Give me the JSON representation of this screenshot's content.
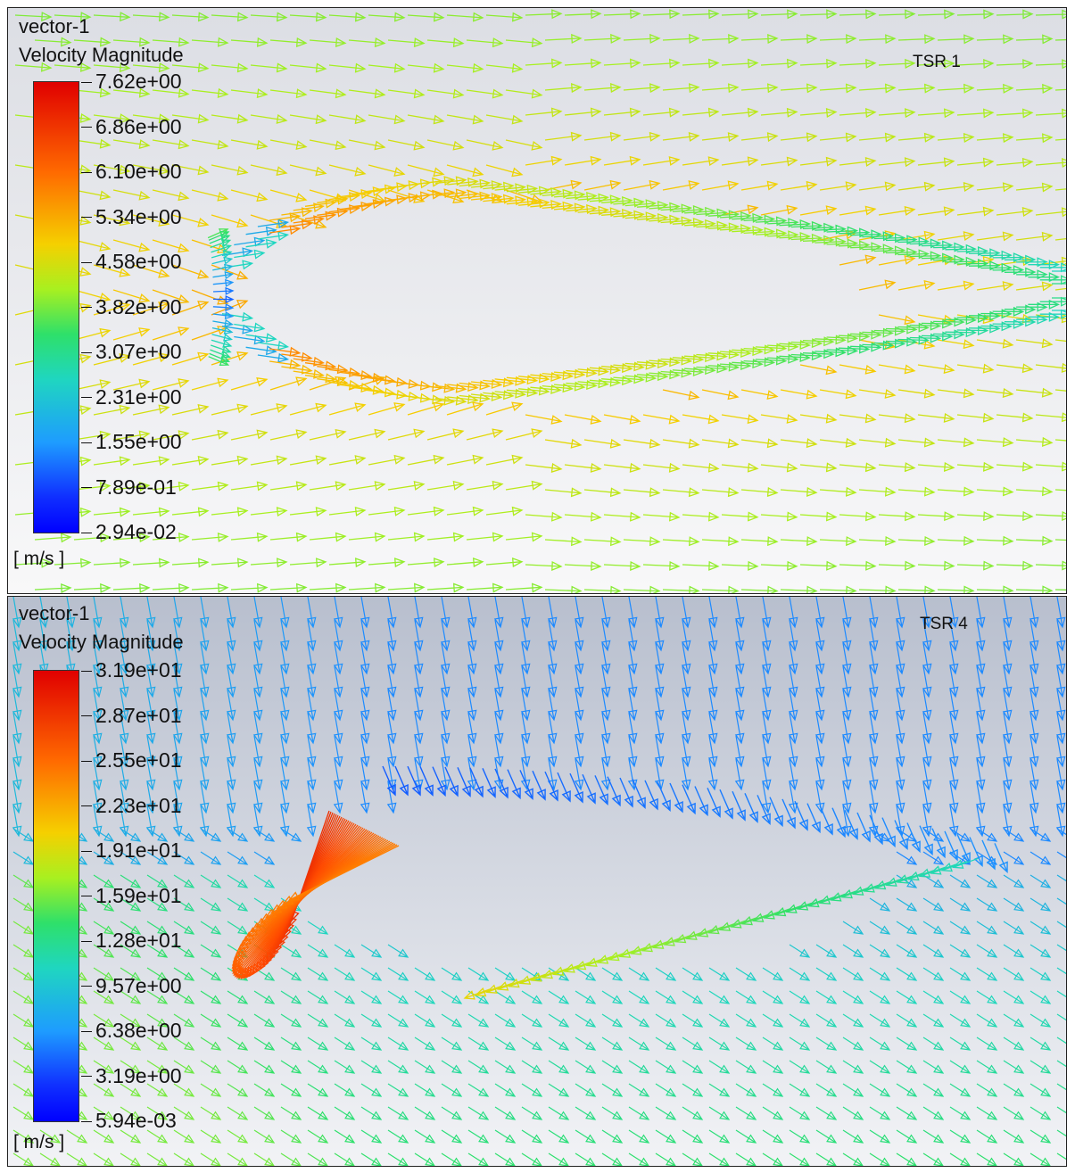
{
  "panels": {
    "top": {
      "title_line1": "vector-1",
      "title_line2": "Velocity Magnitude",
      "tsr_label": "TSR 1",
      "unit": "[ m/s ]",
      "ticks": [
        "7.62e+00",
        "6.86e+00",
        "6.10e+00",
        "5.34e+00",
        "4.58e+00",
        "3.82e+00",
        "3.07e+00",
        "2.31e+00",
        "1.55e+00",
        "7.89e-01",
        "2.94e-02"
      ],
      "max": 7.62,
      "min": 0.0294
    },
    "bottom": {
      "title_line1": "vector-1",
      "title_line2": "Velocity Magnitude",
      "tsr_label": "TSR 4",
      "unit": "[ m/s ]",
      "ticks": [
        "3.19e+01",
        "2.87e+01",
        "2.55e+01",
        "2.23e+01",
        "1.91e+01",
        "1.59e+01",
        "1.28e+01",
        "9.57e+00",
        "6.38e+00",
        "3.19e+00",
        "5.94e-03"
      ],
      "max": 31.9,
      "min": 0.00594
    }
  },
  "colorscale": [
    "#0000ff",
    "#1e90ff",
    "#1fd6c0",
    "#2ee06a",
    "#a8f020",
    "#f5d000",
    "#ff8c00",
    "#ff4a00",
    "#d00000"
  ]
}
